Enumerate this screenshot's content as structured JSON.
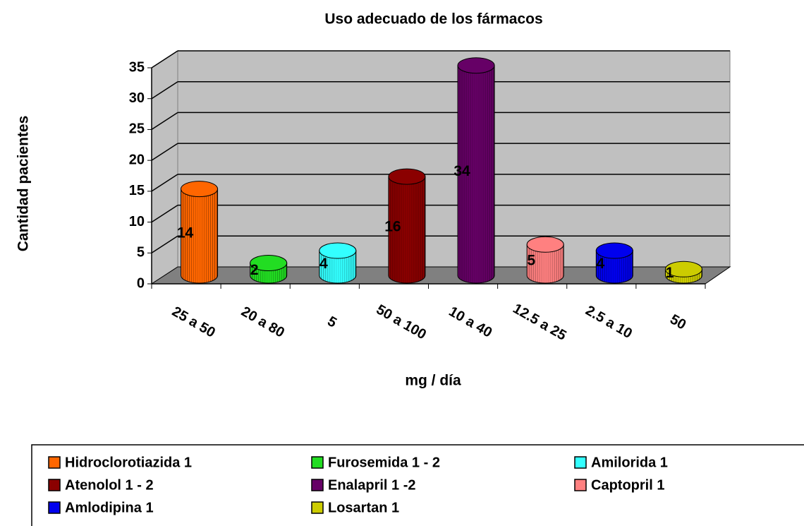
{
  "chart_data": {
    "type": "bar3d-cylinder",
    "title": "Uso adecuado de los fármacos",
    "xlabel": "mg / día",
    "ylabel": "Cantidad pacientes",
    "categories": [
      "25 a 50",
      "20 a 80",
      "5",
      "50 a 100",
      "10 a 40",
      "12.5 a 25",
      "2.5 a 10",
      "50"
    ],
    "series": [
      {
        "name": "Hidroclorotiazida 1",
        "color": "#ff6600",
        "values": [
          14,
          null,
          null,
          null,
          null,
          null,
          null,
          null
        ]
      },
      {
        "name": "Furosemida 1 - 2",
        "color": "#22dd22",
        "values": [
          null,
          2,
          null,
          null,
          null,
          null,
          null,
          null
        ]
      },
      {
        "name": "Amilorida 1",
        "color": "#33ffff",
        "values": [
          null,
          null,
          4,
          null,
          null,
          null,
          null,
          null
        ]
      },
      {
        "name": "Atenolol 1 - 2",
        "color": "#8b0000",
        "values": [
          null,
          null,
          null,
          16,
          null,
          null,
          null,
          null
        ]
      },
      {
        "name": "Enalapril 1 -2",
        "color": "#660066",
        "values": [
          null,
          null,
          null,
          null,
          34,
          null,
          null,
          null
        ]
      },
      {
        "name": "Captopril 1",
        "color": "#ff8080",
        "values": [
          null,
          null,
          null,
          null,
          null,
          5,
          null,
          null
        ]
      },
      {
        "name": "Amlodipina 1",
        "color": "#0000ee",
        "values": [
          null,
          null,
          null,
          null,
          null,
          null,
          4,
          null
        ]
      },
      {
        "name": "Losartan 1",
        "color": "#cccc00",
        "values": [
          null,
          null,
          null,
          null,
          null,
          null,
          null,
          1
        ]
      }
    ],
    "ylim": [
      0,
      35
    ],
    "yticks": [
      0,
      5,
      10,
      15,
      20,
      25,
      30,
      35
    ],
    "grid": true
  }
}
